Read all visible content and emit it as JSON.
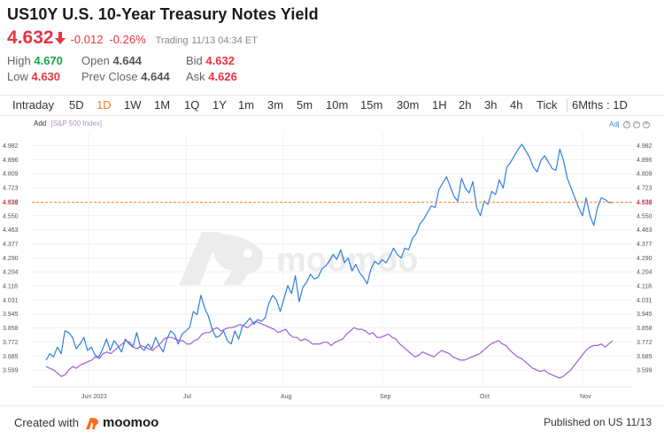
{
  "header": {
    "title": "US10Y U.S. 10-Year Treasury Notes Yield",
    "price": "4.632",
    "change": "-0.012",
    "change_pct": "-0.26%",
    "status": "Trading",
    "timestamp": "11/13 04:34 ET",
    "arrow_icon": "arrow-down-icon",
    "up_color": "#16a34a",
    "down_color": "#e8333f"
  },
  "stats": {
    "high_label": "High",
    "high": "4.670",
    "low_label": "Low",
    "low": "4.630",
    "open_label": "Open",
    "open": "4.644",
    "prev_close_label": "Prev Close",
    "prev_close": "4.644",
    "bid_label": "Bid",
    "bid": "4.632",
    "ask_label": "Ask",
    "ask": "4.626"
  },
  "tabs": [
    "Intraday",
    "5D",
    "1D",
    "1W",
    "1M",
    "1Q",
    "1Y",
    "1m",
    "3m",
    "5m",
    "10m",
    "15m",
    "30m",
    "1H",
    "2h",
    "3h",
    "4h",
    "Tick",
    "6Mths : 1D"
  ],
  "active_tab": "1D",
  "chart_head": {
    "add_label": "Add",
    "compare_label": "[S&P 500 Index]",
    "adj_label": "Adj",
    "watermark": "moomoo"
  },
  "chart_data": {
    "type": "line",
    "y_ticks": [
      "4.982",
      "4.896",
      "4.809",
      "4.723",
      "4.636",
      "4.550",
      "4.463",
      "4.377",
      "4.290",
      "4.204",
      "4.118",
      "4.031",
      "3.945",
      "3.858",
      "3.772",
      "3.685",
      "3.599"
    ],
    "price_marker": "4.632",
    "price_line_value": 4.632,
    "x_labels": [
      "Jun 2023",
      "Jul",
      "Aug",
      "Sep",
      "Oct",
      "Nov"
    ],
    "ylim": [
      3.58,
      5.05
    ],
    "series": [
      {
        "color": "#2f7fe0",
        "values": [
          3.66,
          3.7,
          3.68,
          3.74,
          3.7,
          3.84,
          3.83,
          3.8,
          3.73,
          3.76,
          3.8,
          3.72,
          3.74,
          3.69,
          3.68,
          3.73,
          3.79,
          3.72,
          3.78,
          3.75,
          3.71,
          3.79,
          3.76,
          3.74,
          3.83,
          3.74,
          3.72,
          3.76,
          3.73,
          3.8,
          3.75,
          3.71,
          3.79,
          3.84,
          3.82,
          3.76,
          3.82,
          3.84,
          3.86,
          3.96,
          3.94,
          4.06,
          3.98,
          3.93,
          3.85,
          3.8,
          3.81,
          3.84,
          3.78,
          3.76,
          3.84,
          3.79,
          3.87,
          3.89,
          3.92,
          3.88,
          3.91,
          3.9,
          3.92,
          4.01,
          4.06,
          4.03,
          3.96,
          4.04,
          4.12,
          4.07,
          4.18,
          4.02,
          4.11,
          4.14,
          4.19,
          4.16,
          4.17,
          4.22,
          4.24,
          4.27,
          4.31,
          4.28,
          4.34,
          4.26,
          4.29,
          4.21,
          4.25,
          4.2,
          4.17,
          4.13,
          4.22,
          4.27,
          4.25,
          4.28,
          4.26,
          4.3,
          4.35,
          4.31,
          4.29,
          4.35,
          4.34,
          4.41,
          4.44,
          4.5,
          4.53,
          4.57,
          4.61,
          4.6,
          4.71,
          4.75,
          4.79,
          4.73,
          4.67,
          4.64,
          4.78,
          4.72,
          4.69,
          4.76,
          4.6,
          4.55,
          4.64,
          4.62,
          4.7,
          4.68,
          4.77,
          4.72,
          4.85,
          4.88,
          4.92,
          4.96,
          4.99,
          4.95,
          4.91,
          4.85,
          4.82,
          4.89,
          4.92,
          4.88,
          4.84,
          4.83,
          4.96,
          4.89,
          4.78,
          4.72,
          4.66,
          4.6,
          4.55,
          4.66,
          4.55,
          4.49,
          4.6,
          4.66,
          4.65,
          4.63,
          4.632
        ]
      },
      {
        "color": "#9b5fd6",
        "values": [
          3.62,
          3.61,
          3.6,
          3.58,
          3.56,
          3.57,
          3.6,
          3.62,
          3.61,
          3.63,
          3.64,
          3.65,
          3.66,
          3.68,
          3.67,
          3.7,
          3.71,
          3.7,
          3.72,
          3.74,
          3.76,
          3.78,
          3.77,
          3.74,
          3.73,
          3.75,
          3.74,
          3.73,
          3.72,
          3.74,
          3.76,
          3.79,
          3.8,
          3.8,
          3.79,
          3.78,
          3.78,
          3.76,
          3.76,
          3.78,
          3.79,
          3.82,
          3.83,
          3.83,
          3.85,
          3.86,
          3.84,
          3.85,
          3.86,
          3.86,
          3.87,
          3.88,
          3.87,
          3.86,
          3.88,
          3.9,
          3.89,
          3.88,
          3.87,
          3.86,
          3.85,
          3.83,
          3.84,
          3.85,
          3.82,
          3.8,
          3.8,
          3.78,
          3.79,
          3.78,
          3.76,
          3.76,
          3.76,
          3.77,
          3.77,
          3.75,
          3.77,
          3.78,
          3.79,
          3.82,
          3.84,
          3.86,
          3.85,
          3.85,
          3.84,
          3.82,
          3.83,
          3.8,
          3.8,
          3.81,
          3.82,
          3.8,
          3.79,
          3.76,
          3.74,
          3.72,
          3.7,
          3.68,
          3.69,
          3.71,
          3.7,
          3.69,
          3.68,
          3.7,
          3.72,
          3.71,
          3.7,
          3.68,
          3.67,
          3.66,
          3.66,
          3.67,
          3.68,
          3.69,
          3.7,
          3.72,
          3.74,
          3.76,
          3.77,
          3.78,
          3.76,
          3.75,
          3.72,
          3.7,
          3.68,
          3.67,
          3.65,
          3.63,
          3.61,
          3.6,
          3.59,
          3.6,
          3.58,
          3.57,
          3.56,
          3.55,
          3.56,
          3.58,
          3.6,
          3.63,
          3.66,
          3.69,
          3.72,
          3.74,
          3.75,
          3.75,
          3.76,
          3.74,
          3.76,
          3.78
        ]
      }
    ]
  },
  "footer": {
    "created_label": "Created with",
    "brand": "moomoo",
    "published": "Published on US 11/13"
  }
}
